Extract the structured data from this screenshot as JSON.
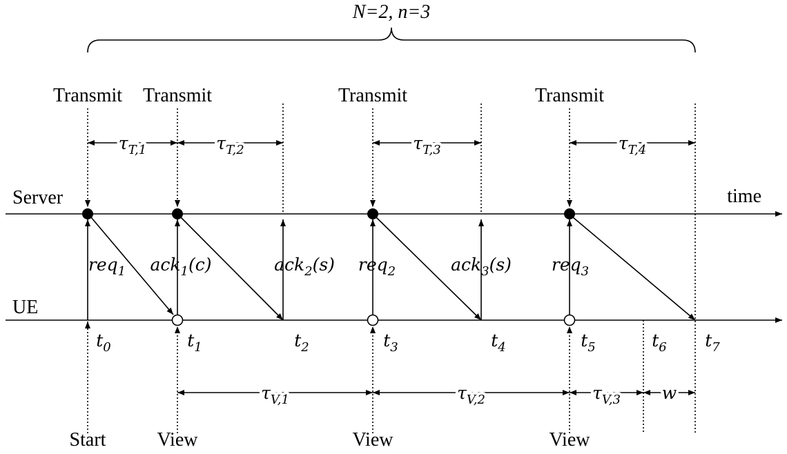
{
  "brace_label": "N=2, n=3",
  "axis_labels": {
    "server": "Server",
    "ue": "UE",
    "time": "time"
  },
  "transmit_labels": [
    "Transmit",
    "Transmit",
    "Transmit",
    "Transmit"
  ],
  "tau_t": [
    {
      "base": "τ",
      "sub": "T,1"
    },
    {
      "base": "τ",
      "sub": "T,2"
    },
    {
      "base": "τ",
      "sub": "T,3"
    },
    {
      "base": "τ",
      "sub": "T,4"
    }
  ],
  "messages": [
    {
      "base": "req",
      "sub": "1"
    },
    {
      "base": "ack",
      "sub": "1",
      "suffix": "(c)"
    },
    {
      "base": "ack",
      "sub": "2",
      "suffix": "(s)"
    },
    {
      "base": "req",
      "sub": "2"
    },
    {
      "base": "ack",
      "sub": "3",
      "suffix": "(s)"
    },
    {
      "base": "req",
      "sub": "3"
    }
  ],
  "times": [
    {
      "base": "t",
      "sub": "0"
    },
    {
      "base": "t",
      "sub": "1"
    },
    {
      "base": "t",
      "sub": "2"
    },
    {
      "base": "t",
      "sub": "3"
    },
    {
      "base": "t",
      "sub": "4"
    },
    {
      "base": "t",
      "sub": "5"
    },
    {
      "base": "t",
      "sub": "6"
    },
    {
      "base": "t",
      "sub": "7"
    }
  ],
  "tau_v": [
    {
      "base": "τ",
      "sub": "V,1"
    },
    {
      "base": "τ",
      "sub": "V,2"
    },
    {
      "base": "τ",
      "sub": "V,3"
    },
    {
      "base": "w"
    }
  ],
  "bottom_labels": [
    "Start",
    "View",
    "View",
    "View"
  ]
}
